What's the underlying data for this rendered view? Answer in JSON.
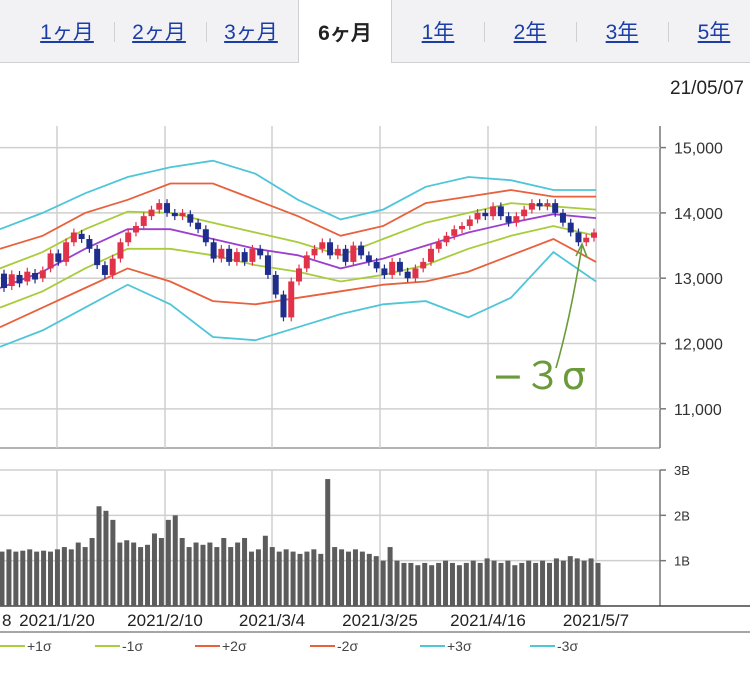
{
  "tabs": [
    {
      "label": "1ヶ月",
      "active": false
    },
    {
      "label": "2ヶ月",
      "active": false
    },
    {
      "label": "3ヶ月",
      "active": false
    },
    {
      "label": "6ヶ月",
      "active": true
    },
    {
      "label": "1年",
      "active": false
    },
    {
      "label": "2年",
      "active": false
    },
    {
      "label": "3年",
      "active": false
    },
    {
      "label": "5年",
      "active": false
    }
  ],
  "date": "21/05/07",
  "annotation": "−３σ",
  "colors": {
    "candle_up": "#e0334a",
    "candle_down": "#1f2d8c",
    "mid": "#9b3fd0",
    "s1": "#a8cc3a",
    "s2": "#e8603c",
    "s3": "#4fc6d8",
    "volume": "#5c5c5c",
    "annotation": "#6a9a3a"
  },
  "chart_data": [
    {
      "type": "candlestick",
      "title": "",
      "y_ticks": [
        "15,000",
        "14,000",
        "13,000",
        "12,000",
        "11,000"
      ],
      "ylim": [
        10400,
        15300
      ],
      "x_ticks": [
        "2021/1/20",
        "2021/2/10",
        "2021/3/4",
        "2021/3/25",
        "2021/4/16",
        "2021/5/7"
      ],
      "x_first_partial": "8",
      "legend": [
        "+1σ",
        "-1σ",
        "+2σ",
        "-2σ",
        "+3σ",
        "-3σ"
      ],
      "bands": {
        "dates": [
          "2021/1/1",
          "2021/1/20",
          "2021/2/1",
          "2021/2/10",
          "2021/2/22",
          "2021/3/4",
          "2021/3/8",
          "2021/3/15",
          "2021/3/25",
          "2021/4/1",
          "2021/4/9",
          "2021/4/16",
          "2021/4/23",
          "2021/4/30",
          "2021/5/7"
        ],
        "mid": [
          12850,
          13100,
          13450,
          13750,
          13750,
          13600,
          13450,
          13350,
          13150,
          13300,
          13500,
          13700,
          13850,
          13980,
          13920
        ],
        "p1": [
          13150,
          13400,
          13750,
          14020,
          14000,
          13850,
          13700,
          13550,
          13350,
          13600,
          13850,
          14000,
          14150,
          14100,
          14050
        ],
        "m1": [
          12550,
          12800,
          13150,
          13450,
          13450,
          13350,
          13200,
          13100,
          12950,
          13050,
          13200,
          13450,
          13650,
          13800,
          13650
        ],
        "p2": [
          13450,
          13650,
          14000,
          14200,
          14450,
          14450,
          14200,
          13950,
          13650,
          13800,
          14150,
          14250,
          14350,
          14250,
          14250
        ],
        "m2": [
          12250,
          12550,
          12850,
          13150,
          12950,
          12650,
          12600,
          12700,
          12800,
          12900,
          12950,
          13100,
          13350,
          13600,
          13250
        ],
        "p3": [
          13750,
          14000,
          14300,
          14550,
          14700,
          14800,
          14600,
          14200,
          13900,
          14050,
          14400,
          14550,
          14500,
          14350,
          14350
        ],
        "m3": [
          11950,
          12200,
          12550,
          12900,
          12600,
          12100,
          12050,
          12250,
          12450,
          12600,
          12650,
          12400,
          12700,
          13400,
          12950
        ]
      },
      "candles": [
        [
          13070,
          12850
        ],
        [
          12880,
          13060
        ],
        [
          13050,
          12920
        ],
        [
          12950,
          13100
        ],
        [
          13080,
          12980
        ],
        [
          13000,
          13120
        ],
        [
          13150,
          13380
        ],
        [
          13380,
          13250
        ],
        [
          13250,
          13550
        ],
        [
          13550,
          13700
        ],
        [
          13680,
          13600
        ],
        [
          13600,
          13450
        ],
        [
          13450,
          13200
        ],
        [
          13200,
          13050
        ],
        [
          13050,
          13300
        ],
        [
          13300,
          13550
        ],
        [
          13550,
          13700
        ],
        [
          13700,
          13800
        ],
        [
          13800,
          13950
        ],
        [
          13950,
          14050
        ],
        [
          14050,
          14150
        ],
        [
          14150,
          14000
        ],
        [
          14000,
          13950
        ],
        [
          13950,
          14000
        ],
        [
          13980,
          13850
        ],
        [
          13850,
          13750
        ],
        [
          13750,
          13550
        ],
        [
          13550,
          13300
        ],
        [
          13300,
          13450
        ],
        [
          13450,
          13250
        ],
        [
          13250,
          13400
        ],
        [
          13400,
          13250
        ],
        [
          13250,
          13450
        ],
        [
          13450,
          13350
        ],
        [
          13350,
          13050
        ],
        [
          13050,
          12750
        ],
        [
          12750,
          12400
        ],
        [
          12400,
          12950
        ],
        [
          12950,
          13150
        ],
        [
          13150,
          13350
        ],
        [
          13350,
          13450
        ],
        [
          13450,
          13550
        ],
        [
          13550,
          13350
        ],
        [
          13350,
          13450
        ],
        [
          13450,
          13250
        ],
        [
          13250,
          13500
        ],
        [
          13500,
          13350
        ],
        [
          13350,
          13250
        ],
        [
          13250,
          13150
        ],
        [
          13150,
          13050
        ],
        [
          13050,
          13250
        ],
        [
          13250,
          13100
        ],
        [
          13100,
          13000
        ],
        [
          13000,
          13150
        ],
        [
          13150,
          13250
        ],
        [
          13250,
          13450
        ],
        [
          13450,
          13550
        ],
        [
          13550,
          13650
        ],
        [
          13650,
          13750
        ],
        [
          13750,
          13800
        ],
        [
          13800,
          13900
        ],
        [
          13900,
          14000
        ],
        [
          14000,
          13950
        ],
        [
          13950,
          14100
        ],
        [
          14100,
          13950
        ],
        [
          13950,
          13850
        ],
        [
          13850,
          13950
        ],
        [
          13950,
          14050
        ],
        [
          14050,
          14150
        ],
        [
          14150,
          14100
        ],
        [
          14100,
          14150
        ],
        [
          14150,
          14000
        ],
        [
          14000,
          13850
        ],
        [
          13850,
          13700
        ],
        [
          13700,
          13550
        ],
        [
          13550,
          13620
        ],
        [
          13620,
          13700
        ]
      ]
    },
    {
      "type": "bar",
      "title": "",
      "y_ticks": [
        "3B",
        "2B",
        "1B"
      ],
      "ylim": [
        0,
        3.0
      ],
      "values": [
        1.2,
        1.25,
        1.2,
        1.22,
        1.25,
        1.2,
        1.22,
        1.2,
        1.25,
        1.3,
        1.25,
        1.4,
        1.3,
        1.5,
        2.2,
        2.1,
        1.9,
        1.4,
        1.45,
        1.4,
        1.3,
        1.35,
        1.6,
        1.5,
        1.9,
        2.0,
        1.5,
        1.3,
        1.4,
        1.35,
        1.4,
        1.3,
        1.5,
        1.3,
        1.4,
        1.5,
        1.2,
        1.25,
        1.55,
        1.3,
        1.2,
        1.25,
        1.2,
        1.15,
        1.2,
        1.25,
        1.15,
        2.8,
        1.3,
        1.25,
        1.2,
        1.25,
        1.2,
        1.15,
        1.1,
        1.0,
        1.3,
        1.0,
        0.95,
        0.95,
        0.9,
        0.95,
        0.9,
        0.95,
        1.0,
        0.95,
        0.9,
        0.95,
        1.0,
        0.95,
        1.05,
        1.0,
        0.95,
        1.0,
        0.9,
        0.95,
        1.0,
        0.95,
        1.0,
        0.95,
        1.05,
        1.0,
        1.1,
        1.05,
        1.0,
        1.05,
        0.95
      ]
    }
  ]
}
